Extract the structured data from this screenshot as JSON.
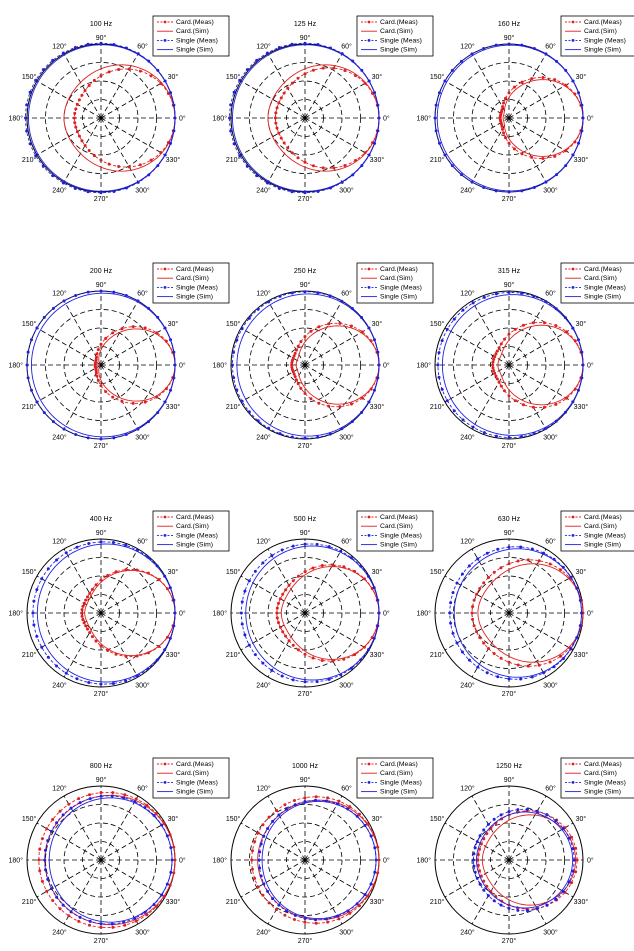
{
  "figure": {
    "type": "polar-grid",
    "rows": 4,
    "cols": 3
  },
  "legend_labels": [
    "Card.(Meas)",
    "Card.(Sim)",
    "Single (Meas)",
    "Single (Sim)"
  ],
  "legend_labels_row1": [
    "Card.(Meas)",
    "Card.(Sim)",
    "Single (Meas)",
    "Single (Sim)"
  ],
  "angle_ticks": [
    "0°",
    "30°",
    "60°",
    "90°",
    "120°",
    "150°",
    "180°",
    "210°",
    "240°",
    "270°",
    "300°",
    "330°"
  ],
  "colors": {
    "cardioid": "#e02020",
    "single": "#2020e0",
    "grid": "#000000"
  },
  "chart_data": [
    {
      "type": "polar",
      "title": "100 Hz",
      "series": [
        {
          "name": "Card.(Meas)",
          "pattern": {
            "front": 1.0,
            "back": 0.36,
            "p": 1.6
          }
        },
        {
          "name": "Card.(Sim)",
          "pattern": {
            "front": 1.0,
            "back": 0.5,
            "p": 1.6
          }
        },
        {
          "name": "Single (Meas)",
          "pattern": {
            "front": 1.0,
            "back": 1.02,
            "p": 1.0
          }
        },
        {
          "name": "Single (Sim)",
          "pattern": {
            "front": 1.0,
            "back": 0.98,
            "p": 1.0
          }
        }
      ]
    },
    {
      "type": "polar",
      "title": "125 Hz",
      "series": [
        {
          "name": "Card.(Meas)",
          "pattern": {
            "front": 1.0,
            "back": 0.4,
            "p": 1.6
          }
        },
        {
          "name": "Card.(Sim)",
          "pattern": {
            "front": 1.0,
            "back": 0.5,
            "p": 1.6
          }
        },
        {
          "name": "Single (Meas)",
          "pattern": {
            "front": 1.0,
            "back": 1.02,
            "p": 1.0
          }
        },
        {
          "name": "Single (Sim)",
          "pattern": {
            "front": 1.0,
            "back": 0.98,
            "p": 1.0
          }
        }
      ]
    },
    {
      "type": "polar",
      "title": "160 Hz",
      "series": [
        {
          "name": "Card.(Meas)",
          "pattern": {
            "front": 1.0,
            "back": 0.12,
            "p": 2.0
          }
        },
        {
          "name": "Card.(Sim)",
          "pattern": {
            "front": 1.0,
            "back": 0.08,
            "p": 2.2
          }
        },
        {
          "name": "Single (Meas)",
          "pattern": {
            "front": 1.0,
            "back": 1.0,
            "p": 1.0
          }
        },
        {
          "name": "Single (Sim)",
          "pattern": {
            "front": 1.0,
            "back": 0.97,
            "p": 1.0
          }
        }
      ]
    },
    {
      "type": "polar",
      "title": "200 Hz",
      "series": [
        {
          "name": "Card.(Meas)",
          "pattern": {
            "front": 1.0,
            "back": 0.08,
            "p": 2.2
          }
        },
        {
          "name": "Card.(Sim)",
          "pattern": {
            "front": 1.0,
            "back": 0.02,
            "p": 2.4
          }
        },
        {
          "name": "Single (Meas)",
          "pattern": {
            "front": 1.0,
            "back": 1.0,
            "p": 1.0
          }
        },
        {
          "name": "Single (Sim)",
          "pattern": {
            "front": 1.0,
            "back": 0.94,
            "p": 1.0
          }
        }
      ]
    },
    {
      "type": "polar",
      "title": "250 Hz",
      "series": [
        {
          "name": "Card.(Meas)",
          "pattern": {
            "front": 1.0,
            "back": 0.18,
            "p": 2.0
          }
        },
        {
          "name": "Card.(Sim)",
          "pattern": {
            "front": 1.0,
            "back": 0.12,
            "p": 2.2
          }
        },
        {
          "name": "Single (Meas)",
          "pattern": {
            "front": 1.0,
            "back": 0.98,
            "p": 1.0
          }
        },
        {
          "name": "Single (Sim)",
          "pattern": {
            "front": 1.0,
            "back": 0.92,
            "p": 1.0
          }
        }
      ]
    },
    {
      "type": "polar",
      "title": "315 Hz",
      "series": [
        {
          "name": "Card.(Meas)",
          "pattern": {
            "front": 1.0,
            "back": 0.22,
            "p": 2.0
          }
        },
        {
          "name": "Card.(Sim)",
          "pattern": {
            "front": 1.0,
            "back": 0.15,
            "p": 2.2
          }
        },
        {
          "name": "Single (Meas)",
          "pattern": {
            "front": 1.0,
            "back": 0.96,
            "p": 1.0
          }
        },
        {
          "name": "Single (Sim)",
          "pattern": {
            "front": 1.0,
            "back": 0.9,
            "p": 1.0
          }
        }
      ]
    },
    {
      "type": "polar",
      "title": "400 Hz",
      "series": [
        {
          "name": "Card.(Meas)",
          "pattern": {
            "front": 1.0,
            "back": 0.26,
            "p": 2.0
          }
        },
        {
          "name": "Card.(Sim)",
          "pattern": {
            "front": 1.0,
            "back": 0.22,
            "p": 2.0
          }
        },
        {
          "name": "Single (Meas)",
          "pattern": {
            "front": 1.0,
            "back": 0.92,
            "p": 1.0
          }
        },
        {
          "name": "Single (Sim)",
          "pattern": {
            "front": 1.0,
            "back": 0.86,
            "p": 1.0
          }
        }
      ]
    },
    {
      "type": "polar",
      "title": "500 Hz",
      "series": [
        {
          "name": "Card.(Meas)",
          "pattern": {
            "front": 1.0,
            "back": 0.38,
            "p": 1.8
          }
        },
        {
          "name": "Card.(Sim)",
          "pattern": {
            "front": 1.0,
            "back": 0.32,
            "p": 1.8
          }
        },
        {
          "name": "Single (Meas)",
          "pattern": {
            "front": 1.0,
            "back": 0.86,
            "p": 1.0
          }
        },
        {
          "name": "Single (Sim)",
          "pattern": {
            "front": 1.0,
            "back": 0.8,
            "p": 1.0
          }
        }
      ]
    },
    {
      "type": "polar",
      "title": "630 Hz",
      "series": [
        {
          "name": "Card.(Meas)",
          "pattern": {
            "front": 1.0,
            "back": 0.5,
            "p": 1.6
          }
        },
        {
          "name": "Card.(Sim)",
          "pattern": {
            "front": 1.0,
            "back": 0.42,
            "p": 1.8
          }
        },
        {
          "name": "Single (Meas)",
          "pattern": {
            "front": 0.98,
            "back": 0.8,
            "p": 1.0
          }
        },
        {
          "name": "Single (Sim)",
          "pattern": {
            "front": 0.98,
            "back": 0.74,
            "p": 1.0
          }
        }
      ]
    },
    {
      "type": "polar",
      "title": "800 Hz",
      "series": [
        {
          "name": "Card.(Meas)",
          "pattern": {
            "front": 1.0,
            "back": 0.84,
            "p": 1.2
          }
        },
        {
          "name": "Card.(Sim)",
          "pattern": {
            "front": 1.0,
            "back": 0.76,
            "p": 1.2
          }
        },
        {
          "name": "Single (Meas)",
          "pattern": {
            "front": 0.96,
            "back": 0.76,
            "p": 1.0
          }
        },
        {
          "name": "Single (Sim)",
          "pattern": {
            "front": 0.96,
            "back": 0.7,
            "p": 1.0
          }
        }
      ]
    },
    {
      "type": "polar",
      "title": "1000 Hz",
      "series": [
        {
          "name": "Card.(Meas)",
          "pattern": {
            "front": 1.0,
            "back": 0.72,
            "p": 1.2
          }
        },
        {
          "name": "Card.(Sim)",
          "pattern": {
            "front": 1.0,
            "back": 0.64,
            "p": 1.3
          }
        },
        {
          "name": "Single (Meas)",
          "pattern": {
            "front": 0.96,
            "back": 0.62,
            "p": 1.0
          }
        },
        {
          "name": "Single (Sim)",
          "pattern": {
            "front": 0.96,
            "back": 0.58,
            "p": 1.0
          }
        }
      ]
    },
    {
      "type": "polar",
      "title": "1250 Hz",
      "series": [
        {
          "name": "Card.(Meas)",
          "pattern": {
            "front": 0.92,
            "back": 0.42,
            "p": 1.4
          }
        },
        {
          "name": "Card.(Sim)",
          "pattern": {
            "front": 0.9,
            "back": 0.36,
            "p": 1.6
          }
        },
        {
          "name": "Single (Meas)",
          "pattern": {
            "front": 0.88,
            "back": 0.48,
            "p": 1.2
          }
        },
        {
          "name": "Single (Sim)",
          "pattern": {
            "front": 0.86,
            "back": 0.44,
            "p": 1.3
          }
        }
      ]
    }
  ]
}
